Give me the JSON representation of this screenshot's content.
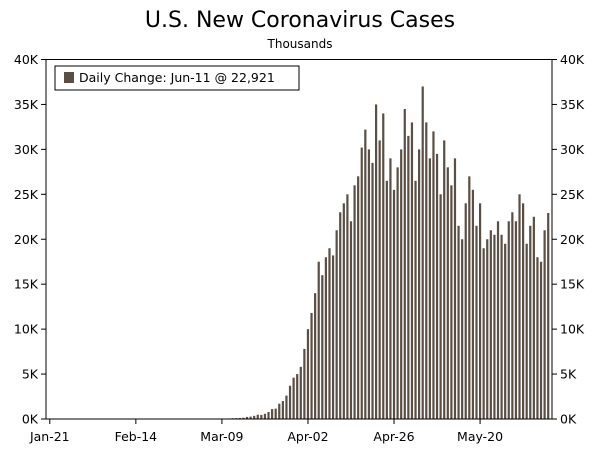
{
  "chart_data": {
    "type": "bar",
    "title": "U.S. New Coronavirus Cases",
    "subtitle": "Thousands",
    "xlabel": "",
    "ylabel": "",
    "ylim": [
      0,
      40000
    ],
    "y_ticks": [
      0,
      5000,
      10000,
      15000,
      20000,
      25000,
      30000,
      35000,
      40000
    ],
    "y_tick_labels": [
      "0K",
      "5K",
      "10K",
      "15K",
      "20K",
      "25K",
      "30K",
      "35K",
      "40K"
    ],
    "x_tick_labels": [
      "Jan-21",
      "Feb-14",
      "Mar-09",
      "Apr-02",
      "Apr-26",
      "May-20"
    ],
    "x_tick_indices": [
      0,
      24,
      48,
      72,
      96,
      120
    ],
    "legend": {
      "label": "Daily Change: Jun-11 @ 22,921",
      "position": "top-left",
      "color": "#5b4f45"
    },
    "bar_color": "#5b4f45",
    "grid": false,
    "start_date": "Jan-21",
    "end_date": "Jun-11",
    "series": [
      {
        "name": "Daily Change",
        "values": [
          1,
          0,
          0,
          0,
          0,
          0,
          0,
          0,
          0,
          1,
          0,
          2,
          0,
          2,
          3,
          0,
          0,
          0,
          0,
          0,
          0,
          2,
          1,
          0,
          0,
          0,
          0,
          0,
          0,
          0,
          0,
          0,
          0,
          0,
          0,
          1,
          2,
          2,
          3,
          5,
          4,
          6,
          8,
          10,
          12,
          15,
          22,
          28,
          40,
          55,
          60,
          85,
          95,
          110,
          140,
          230,
          265,
          350,
          480,
          450,
          580,
          780,
          1100,
          1150,
          1700,
          2000,
          2600,
          3700,
          4600,
          5000,
          5800,
          7800,
          10000,
          11800,
          14000,
          17500,
          16000,
          18000,
          19000,
          18200,
          21000,
          23000,
          24000,
          25000,
          22000,
          26000,
          27000,
          30200,
          32200,
          30000,
          28500,
          35000,
          31000,
          34000,
          26500,
          29000,
          25500,
          28000,
          30000,
          34500,
          31500,
          33000,
          26500,
          30000,
          37000,
          33000,
          29000,
          32000,
          29500,
          25000,
          31000,
          28000,
          26000,
          29000,
          21500,
          20000,
          24000,
          27000,
          25500,
          21500,
          24000,
          19000,
          20000,
          21000,
          20500,
          22000,
          20500,
          19500,
          22000,
          23000,
          22000,
          25000,
          24000,
          19500,
          21500,
          22500,
          18000,
          17500,
          21000,
          22921
        ]
      }
    ]
  }
}
